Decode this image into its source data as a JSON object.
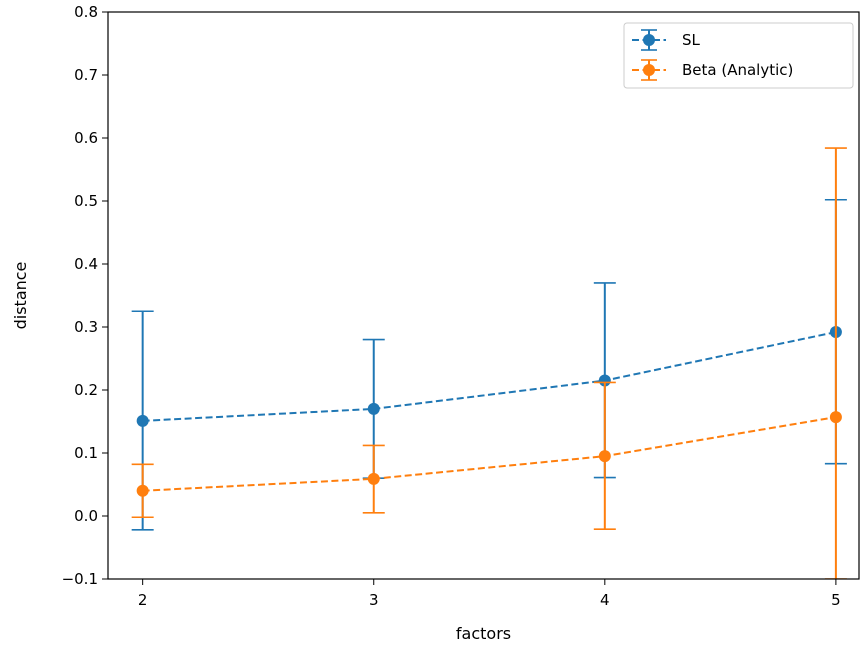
{
  "chart_data": {
    "type": "line",
    "title": "",
    "xlabel": "factors",
    "ylabel": "distance",
    "xlim": [
      1.85,
      5.1
    ],
    "ylim": [
      -0.1,
      0.8
    ],
    "x_ticks": [
      2,
      3,
      4,
      5
    ],
    "x_tick_labels": [
      "2",
      "3",
      "4",
      "5"
    ],
    "y_ticks": [
      -0.1,
      0.0,
      0.1,
      0.2,
      0.3,
      0.4,
      0.5,
      0.6,
      0.7,
      0.8
    ],
    "y_tick_labels": [
      "−0.1",
      "0.0",
      "0.1",
      "0.2",
      "0.3",
      "0.4",
      "0.5",
      "0.6",
      "0.7",
      "0.8"
    ],
    "grid": false,
    "legend_position": "top-right",
    "series": [
      {
        "name": "SL",
        "color": "#1f77b4",
        "linestyle": "dashed",
        "marker": "circle",
        "x": [
          2,
          3,
          4,
          5
        ],
        "y": [
          0.151,
          0.17,
          0.215,
          0.292
        ],
        "error_low": [
          -0.022,
          0.06,
          0.061,
          0.083
        ],
        "error_high": [
          0.325,
          0.28,
          0.37,
          0.502
        ]
      },
      {
        "name": "Beta (Analytic)",
        "color": "#ff7f0e",
        "linestyle": "dashed",
        "marker": "circle",
        "x": [
          2,
          3,
          4,
          5
        ],
        "y": [
          0.04,
          0.059,
          0.095,
          0.157
        ],
        "error_low": [
          -0.002,
          0.005,
          -0.021,
          -0.1
        ],
        "error_high": [
          0.082,
          0.112,
          0.212,
          0.584
        ]
      }
    ]
  }
}
